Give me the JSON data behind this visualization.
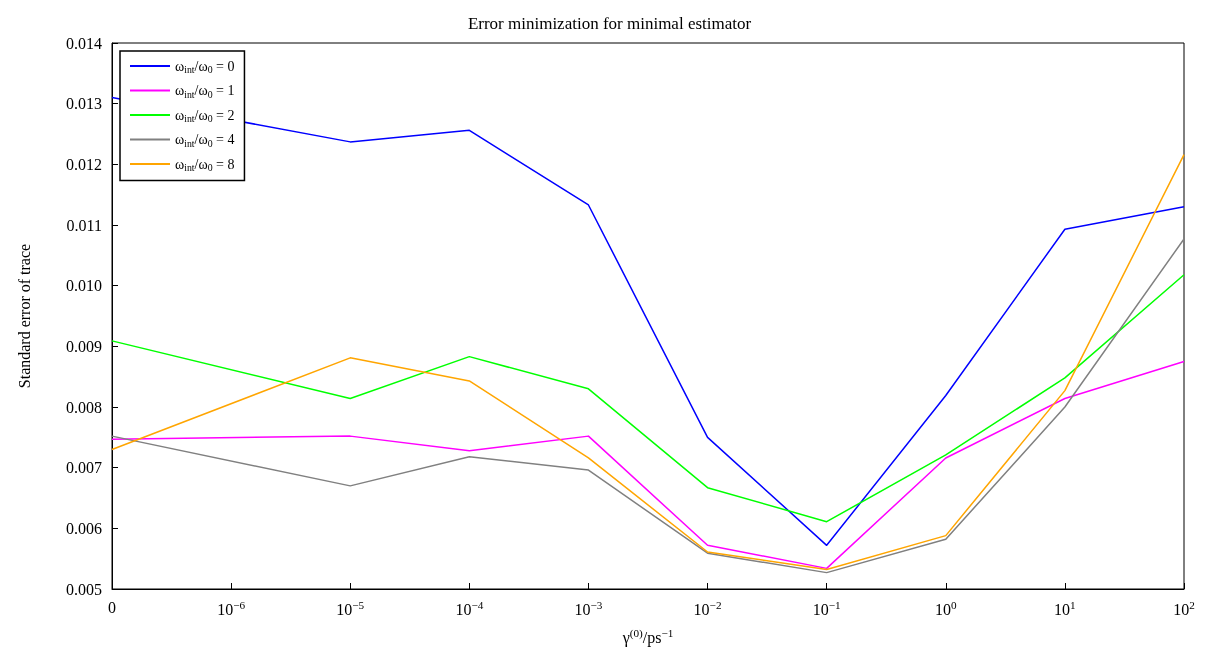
{
  "chart_data": {
    "type": "line",
    "title": "Error minimization for minimal estimator",
    "xlabel": "γ$^{(0)}$/ps$^{−1}$",
    "ylabel": "Standard error of trace",
    "categories": [
      "0",
      "10$^{−6}$",
      "10$^{−5}$",
      "10$^{−4}$",
      "10$^{−3}$",
      "10$^{−2}$",
      "10$^{−1}$",
      "10$^{0}$",
      "10$^{1}$",
      "10$^{2}$"
    ],
    "series": [
      {
        "name": "ω$_{int}$/ω$_{0}$ = 0",
        "color": "#0000ff",
        "values": [
          0.0131,
          null,
          0.01237,
          0.01256,
          0.01133,
          0.0075,
          0.00572,
          0.00819,
          0.01093,
          0.0113
        ]
      },
      {
        "name": "ω$_{int}$/ω$_{0}$ = 1",
        "color": "#ff00ff",
        "values": [
          0.00747,
          null,
          0.00752,
          0.00728,
          0.00752,
          0.00572,
          0.00534,
          0.00716,
          0.00814,
          0.00875
        ]
      },
      {
        "name": "ω$_{int}$/ω$_{0}$ = 2",
        "color": "#00ff00",
        "values": [
          0.00909,
          null,
          0.00814,
          0.00883,
          0.0083,
          0.00667,
          0.00611,
          0.00721,
          0.00848,
          0.01018
        ]
      },
      {
        "name": "ω$_{int}$/ω$_{0}$ = 4",
        "color": "#808080",
        "values": [
          0.00752,
          null,
          0.0067,
          0.00718,
          0.00696,
          0.00559,
          0.00527,
          0.00582,
          0.008,
          0.01077
        ]
      },
      {
        "name": "ω$_{int}$/ω$_{0}$ = 8",
        "color": "#ffa500",
        "values": [
          0.0073,
          null,
          0.00881,
          0.00843,
          0.00716,
          0.00561,
          0.00532,
          0.00588,
          0.00827,
          0.01216
        ]
      }
    ],
    "ylim": [
      0.005,
      0.014
    ],
    "yticks": [
      0.005,
      0.006,
      0.007,
      0.008,
      0.009,
      {
        "value": 0.01,
        "label": "0.010"
      },
      0.011,
      0.012,
      0.013,
      0.014
    ],
    "grid": false,
    "legend": "top left",
    "marker": "none",
    "line_style": "solid"
  }
}
